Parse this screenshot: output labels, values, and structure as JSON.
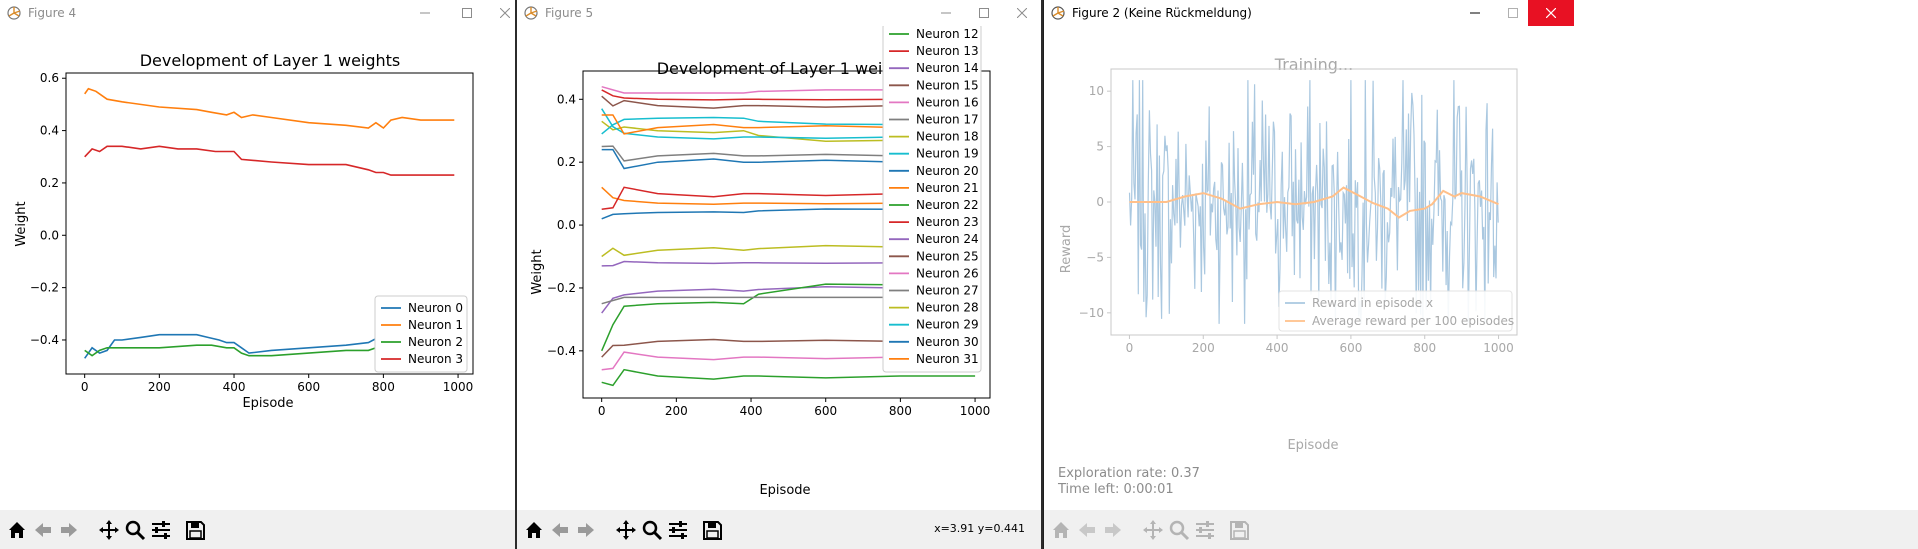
{
  "windows": [
    {
      "id": "fig4",
      "title": "Figure 4",
      "active": false,
      "chart": {
        "title": "Development of Layer 1 weights",
        "xlabel": "Episode",
        "ylabel": "Weight",
        "xticks": [
          "0",
          "200",
          "400",
          "600",
          "800",
          "1000"
        ],
        "yticks": [
          "0.6",
          "0.4",
          "0.2",
          "0.0",
          "−0.2",
          "−0.4"
        ],
        "legend": [
          "Neuron 0",
          "Neuron 1",
          "Neuron 2",
          "Neuron 3"
        ]
      }
    },
    {
      "id": "fig5",
      "title": "Figure 5",
      "active": false,
      "coords": "x=3.91 y=0.441",
      "chart": {
        "title": "Development of Layer 1 weights",
        "xlabel": "Episode",
        "ylabel": "Weight",
        "xticks": [
          "0",
          "200",
          "400",
          "600",
          "800",
          "1000"
        ],
        "yticks": [
          "0.4",
          "0.2",
          "0.0",
          "−0.2",
          "−0.4"
        ],
        "legend": [
          "Neuron 12",
          "Neuron 13",
          "Neuron 14",
          "Neuron 15",
          "Neuron 16",
          "Neuron 17",
          "Neuron 18",
          "Neuron 19",
          "Neuron 20",
          "Neuron 21",
          "Neuron 22",
          "Neuron 23",
          "Neuron 24",
          "Neuron 25",
          "Neuron 26",
          "Neuron 27",
          "Neuron 28",
          "Neuron 29",
          "Neuron 30",
          "Neuron 31"
        ]
      }
    },
    {
      "id": "fig2",
      "title": "Figure 2 (Keine Rückmeldung)",
      "active": true,
      "chart": {
        "title": "Training...",
        "xlabel": "Episode",
        "ylabel": "Reward",
        "xticks": [
          "0",
          "200",
          "400",
          "600",
          "800",
          "1000"
        ],
        "yticks": [
          "10",
          "5",
          "0",
          "−5",
          "−10"
        ],
        "legend": [
          "Reward in episode x",
          "Average reward per 100 episodes"
        ]
      },
      "info": {
        "exploration": "Exploration rate: 0.37",
        "time_left": "Time left: 0:00:01"
      }
    }
  ],
  "colors": {
    "tab10": [
      "#1f77b4",
      "#ff7f0e",
      "#2ca02c",
      "#d62728",
      "#9467bd",
      "#8c564b",
      "#e377c2",
      "#7f7f7f",
      "#bcbd22",
      "#17becf"
    ],
    "reward_line": "#aac8e0",
    "avg_line": "#ffc08a"
  },
  "chart_data": [
    {
      "type": "line",
      "title": "Development of Layer 1 weights",
      "xlabel": "Episode",
      "ylabel": "Weight",
      "xlim": [
        -50,
        1040
      ],
      "ylim": [
        -0.53,
        0.62
      ],
      "series": [
        {
          "name": "Neuron 0",
          "x": [
            0,
            20,
            40,
            60,
            80,
            100,
            150,
            200,
            250,
            300,
            330,
            360,
            380,
            400,
            420,
            440,
            500,
            600,
            700,
            760,
            800,
            850,
            900,
            980
          ],
          "y": [
            -0.47,
            -0.43,
            -0.45,
            -0.44,
            -0.4,
            -0.4,
            -0.39,
            -0.38,
            -0.38,
            -0.38,
            -0.39,
            -0.4,
            -0.41,
            -0.41,
            -0.43,
            -0.45,
            -0.44,
            -0.43,
            -0.42,
            -0.41,
            -0.38,
            -0.36,
            -0.33,
            -0.3
          ]
        },
        {
          "name": "Neuron 1",
          "x": [
            0,
            10,
            30,
            60,
            100,
            200,
            300,
            340,
            380,
            400,
            420,
            450,
            500,
            600,
            700,
            760,
            780,
            800,
            820,
            850,
            900,
            990
          ],
          "y": [
            0.54,
            0.56,
            0.55,
            0.52,
            0.51,
            0.49,
            0.48,
            0.47,
            0.46,
            0.47,
            0.45,
            0.46,
            0.45,
            0.43,
            0.42,
            0.41,
            0.43,
            0.41,
            0.44,
            0.45,
            0.44,
            0.44
          ]
        },
        {
          "name": "Neuron 2",
          "x": [
            0,
            20,
            40,
            60,
            100,
            200,
            300,
            340,
            380,
            400,
            420,
            440,
            500,
            600,
            700,
            760,
            800,
            900,
            990
          ],
          "y": [
            -0.44,
            -0.46,
            -0.44,
            -0.43,
            -0.43,
            -0.43,
            -0.42,
            -0.42,
            -0.43,
            -0.43,
            -0.45,
            -0.46,
            -0.46,
            -0.45,
            -0.44,
            -0.44,
            -0.42,
            -0.4,
            -0.38
          ]
        },
        {
          "name": "Neuron 3",
          "x": [
            0,
            20,
            40,
            60,
            100,
            150,
            200,
            250,
            300,
            350,
            400,
            420,
            500,
            600,
            700,
            760,
            780,
            800,
            820,
            850,
            900,
            990
          ],
          "y": [
            0.3,
            0.33,
            0.32,
            0.34,
            0.34,
            0.33,
            0.34,
            0.33,
            0.33,
            0.32,
            0.32,
            0.29,
            0.28,
            0.27,
            0.27,
            0.25,
            0.24,
            0.24,
            0.23,
            0.23,
            0.23,
            0.23
          ]
        }
      ]
    },
    {
      "type": "line",
      "title": "Development of Layer 1 weights",
      "xlabel": "Episode",
      "ylabel": "Weight",
      "xlim": [
        -50,
        1040
      ],
      "ylim": [
        -0.55,
        0.49
      ],
      "series": [
        {
          "name": "Neuron 12",
          "start": -0.5,
          "mid": -0.48,
          "end": -0.48
        },
        {
          "name": "Neuron 13",
          "start": 0.43,
          "mid": 0.4,
          "end": 0.4
        },
        {
          "name": "Neuron 14",
          "start": -0.28,
          "mid": -0.21,
          "end": -0.2
        },
        {
          "name": "Neuron 15",
          "start": 0.41,
          "mid": 0.38,
          "end": 0.38
        },
        {
          "name": "Neuron 16",
          "start": 0.44,
          "mid": 0.42,
          "end": 0.43
        },
        {
          "name": "Neuron 17",
          "start": 0.25,
          "mid": 0.22,
          "end": 0.22
        },
        {
          "name": "Neuron 18",
          "start": 0.33,
          "mid": 0.3,
          "end": 0.27
        },
        {
          "name": "Neuron 19",
          "start": 0.29,
          "mid": 0.34,
          "end": 0.32
        },
        {
          "name": "Neuron 20",
          "start": 0.24,
          "mid": 0.2,
          "end": 0.2
        },
        {
          "name": "Neuron 21",
          "start": 0.12,
          "mid": 0.07,
          "end": 0.07
        },
        {
          "name": "Neuron 22",
          "start": -0.4,
          "mid": -0.25,
          "end": -0.19
        },
        {
          "name": "Neuron 23",
          "start": 0.05,
          "mid": 0.1,
          "end": 0.1
        },
        {
          "name": "Neuron 24",
          "start": -0.13,
          "mid": -0.12,
          "end": -0.12
        },
        {
          "name": "Neuron 25",
          "start": -0.42,
          "mid": -0.37,
          "end": -0.37
        },
        {
          "name": "Neuron 26",
          "start": -0.46,
          "mid": -0.42,
          "end": -0.42
        },
        {
          "name": "Neuron 27",
          "start": -0.25,
          "mid": -0.23,
          "end": -0.23
        },
        {
          "name": "Neuron 28",
          "start": -0.1,
          "mid": -0.08,
          "end": -0.07
        },
        {
          "name": "Neuron 29",
          "start": 0.37,
          "mid": 0.28,
          "end": 0.28
        },
        {
          "name": "Neuron 30",
          "start": 0.02,
          "mid": 0.04,
          "end": 0.05
        },
        {
          "name": "Neuron 31",
          "start": 0.35,
          "mid": 0.31,
          "end": 0.31
        }
      ]
    },
    {
      "type": "line",
      "title": "Training...",
      "xlabel": "Episode",
      "ylabel": "Reward",
      "xlim": [
        -50,
        1050
      ],
      "ylim": [
        -12,
        12
      ],
      "series": [
        {
          "name": "Reward in episode x",
          "range": [
            -11,
            11
          ],
          "episodes": 1000
        },
        {
          "name": "Average reward per 100 episodes",
          "x": [
            0,
            100,
            150,
            200,
            250,
            300,
            350,
            400,
            450,
            500,
            550,
            580,
            620,
            660,
            700,
            730,
            760,
            800,
            820,
            850,
            880,
            900,
            950,
            1000
          ],
          "y": [
            0.0,
            0.0,
            0.5,
            0.8,
            0.3,
            -0.6,
            -0.2,
            0.0,
            -0.2,
            0.0,
            0.5,
            1.3,
            0.6,
            -0.1,
            -0.6,
            -1.4,
            -0.8,
            -0.6,
            -0.2,
            1.0,
            0.5,
            0.8,
            0.5,
            -0.2
          ]
        }
      ]
    }
  ]
}
